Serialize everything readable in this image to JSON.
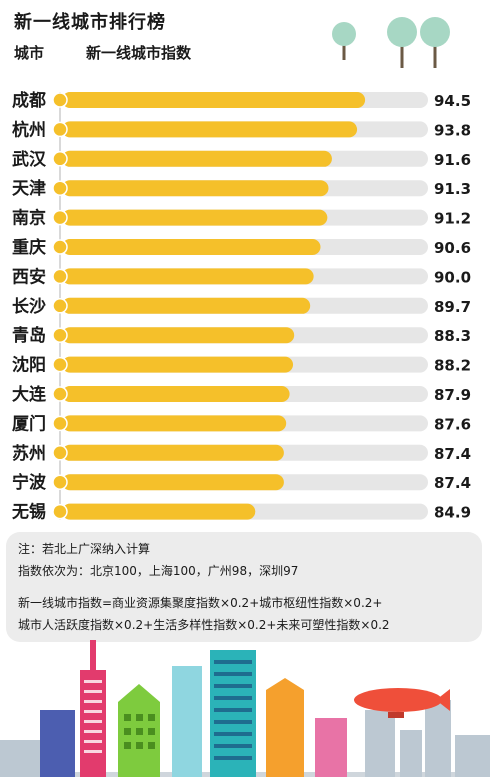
{
  "header": {
    "title": "新一线城市排行榜",
    "col_city": "城市",
    "col_index": "新一线城市指数"
  },
  "chart_data": {
    "type": "bar",
    "orientation": "horizontal",
    "categories": [
      "成都",
      "杭州",
      "武汉",
      "天津",
      "南京",
      "重庆",
      "西安",
      "长沙",
      "青岛",
      "沈阳",
      "大连",
      "厦门",
      "苏州",
      "宁波",
      "无锡"
    ],
    "values": [
      94.5,
      93.8,
      91.6,
      91.3,
      91.2,
      90.6,
      90.0,
      89.7,
      88.3,
      88.2,
      87.9,
      87.6,
      87.4,
      87.4,
      84.9
    ],
    "value_labels": [
      "94.5",
      "93.8",
      "91.6",
      "91.3",
      "91.2",
      "90.6",
      "90.0",
      "89.7",
      "88.3",
      "88.2",
      "87.9",
      "87.6",
      "87.4",
      "87.4",
      "84.9"
    ],
    "xlim": [
      68,
      100
    ],
    "grid": false,
    "colors": {
      "bar": "#f5c02a",
      "track": "#e6e6e6",
      "dot": "#f5c02a"
    }
  },
  "notes": {
    "line1": "注：若北上广深纳入计算",
    "line2": "指数依次为：北京100，上海100，广州98，深圳97",
    "line3": "新一线城市指数=商业资源集聚度指数×0.2+城市枢纽性指数×0.2+",
    "line4": "城市人活跃度指数×0.2+生活多样性指数×0.2+未来可塑性指数×0.2"
  }
}
